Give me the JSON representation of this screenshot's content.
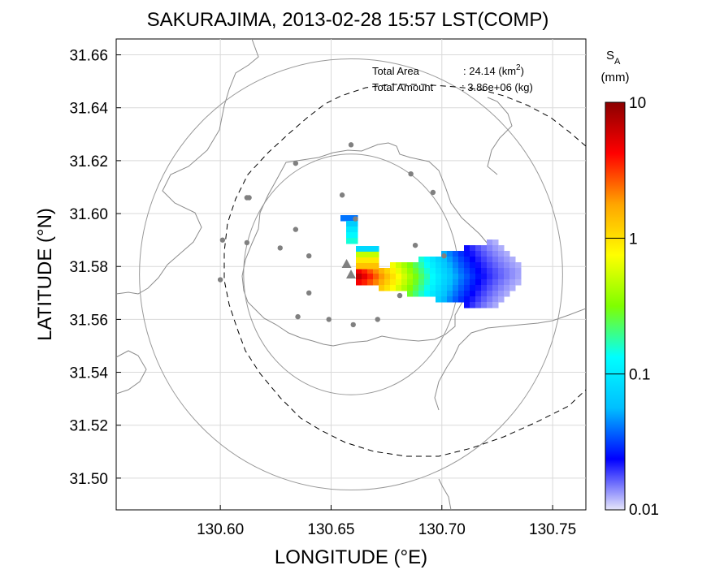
{
  "chart_data": {
    "type": "heatmap",
    "title": "SAKURAJIMA, 2013-02-28 15:57 LST(COMP)",
    "xlabel": "LONGITUDE (°E)",
    "ylabel": "LATITUDE (°N)",
    "xlim": [
      130.553,
      130.765
    ],
    "ylim": [
      31.488,
      31.666
    ],
    "x_ticks": [
      130.6,
      130.65,
      130.7,
      130.75
    ],
    "x_tick_labels": [
      "130.60",
      "130.65",
      "130.70",
      "130.75"
    ],
    "y_ticks": [
      31.5,
      31.52,
      31.54,
      31.56,
      31.58,
      31.6,
      31.62,
      31.64,
      31.66
    ],
    "y_tick_labels": [
      "31.50",
      "31.52",
      "31.54",
      "31.56",
      "31.58",
      "31.60",
      "31.62",
      "31.64",
      "31.66"
    ],
    "grid": true,
    "annotations": {
      "area_label": "Total Area",
      "area_value": ": 24.14 (km",
      "area_sup": "2",
      "area_close": ")",
      "amount_label": "Total Amount",
      "amount_value": ": 3.86e+06 (kg)"
    },
    "colorbar": {
      "title_main": "S",
      "title_sub": "A",
      "unit": "(mm)",
      "scale": "log",
      "range": [
        0.01,
        10
      ],
      "tick_values": [
        0.01,
        0.1,
        1,
        10
      ],
      "tick_labels": [
        "0.01",
        "0.1",
        "1",
        "10"
      ],
      "colors": [
        "#e6e6fa",
        "#0000ff",
        "#00bfff",
        "#00ffff",
        "#7fff00",
        "#ffff00",
        "#ffa500",
        "#ff0000",
        "#8b0000"
      ]
    },
    "vent": {
      "lon": 130.657,
      "lat": 31.581
    },
    "vent2": {
      "lon": 130.659,
      "lat": 31.577
    },
    "stations": [
      {
        "lon": 130.659,
        "lat": 31.626
      },
      {
        "lon": 130.634,
        "lat": 31.619
      },
      {
        "lon": 130.686,
        "lat": 31.615
      },
      {
        "lon": 130.613,
        "lat": 31.606
      },
      {
        "lon": 130.612,
        "lat": 31.606
      },
      {
        "lon": 130.655,
        "lat": 31.607
      },
      {
        "lon": 130.696,
        "lat": 31.608
      },
      {
        "lon": 130.661,
        "lat": 31.598
      },
      {
        "lon": 130.601,
        "lat": 31.59
      },
      {
        "lon": 130.612,
        "lat": 31.589
      },
      {
        "lon": 130.634,
        "lat": 31.594
      },
      {
        "lon": 130.627,
        "lat": 31.587
      },
      {
        "lon": 130.64,
        "lat": 31.584
      },
      {
        "lon": 130.688,
        "lat": 31.588
      },
      {
        "lon": 130.701,
        "lat": 31.584
      },
      {
        "lon": 130.6,
        "lat": 31.575
      },
      {
        "lon": 130.64,
        "lat": 31.57
      },
      {
        "lon": 130.635,
        "lat": 31.561
      },
      {
        "lon": 130.649,
        "lat": 31.56
      },
      {
        "lon": 130.66,
        "lat": 31.558
      },
      {
        "lon": 130.671,
        "lat": 31.56
      },
      {
        "lon": 130.681,
        "lat": 31.569
      }
    ],
    "range_circles": [
      {
        "lon": 130.659,
        "lat": 31.577,
        "r_deg_x": 0.0955,
        "r_deg_y": 0.0815
      },
      {
        "lon": 130.659,
        "lat": 31.577,
        "r_deg_x": 0.0485,
        "r_deg_y": 0.0455
      }
    ]
  }
}
